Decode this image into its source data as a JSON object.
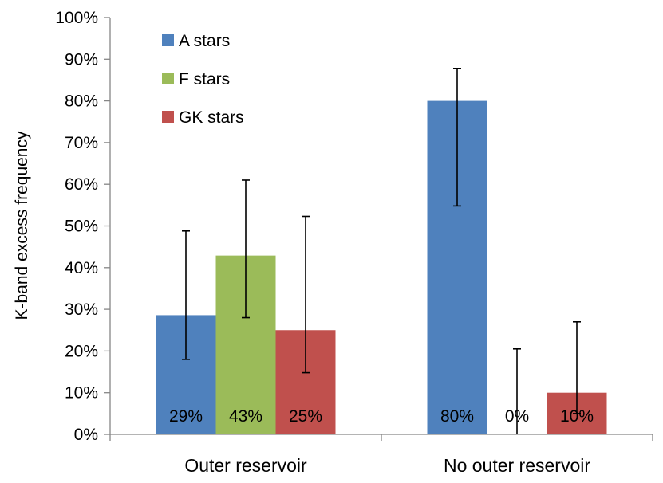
{
  "chart_data": {
    "type": "bar",
    "categories": [
      "Outer reservoir",
      "No outer reservoir"
    ],
    "ylabel": "K-band excess frequency",
    "ylim": [
      0,
      100
    ],
    "ytick_values": [
      0,
      10,
      20,
      30,
      40,
      50,
      60,
      70,
      80,
      90,
      100
    ],
    "ytick_labels": [
      "0%",
      "10%",
      "20%",
      "30%",
      "40%",
      "50%",
      "60%",
      "70%",
      "80%",
      "90%",
      "100%"
    ],
    "legend_position": "top-left",
    "grid": false,
    "series": [
      {
        "name": "A stars",
        "color": "#4f81bd",
        "values": [
          28.6,
          80
        ],
        "err_low": [
          18,
          54.8
        ],
        "err_high": [
          48.8,
          87.8
        ],
        "labels": [
          "29%",
          "80%"
        ]
      },
      {
        "name": "F stars",
        "color": "#9bbb59",
        "values": [
          42.9,
          0
        ],
        "err_low": [
          28,
          0
        ],
        "err_high": [
          61,
          20.5
        ],
        "labels": [
          "43%",
          "0%"
        ]
      },
      {
        "name": "GK stars",
        "color": "#c0504d",
        "values": [
          25,
          10
        ],
        "err_low": [
          14.8,
          5
        ],
        "err_high": [
          52.3,
          27
        ],
        "labels": [
          "25%",
          "10%"
        ]
      }
    ]
  }
}
